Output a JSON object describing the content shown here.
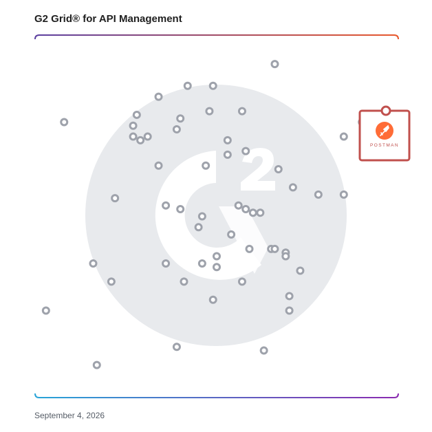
{
  "title": "G2 Grid® for API Management",
  "date": "September 4, 2026",
  "featured": {
    "name": "POSTMAN",
    "icon": "postman-rocket-icon",
    "brand_color": "#ff6c37",
    "frame_color": "#c0504d"
  },
  "colors": {
    "marker_stroke": "#9ea2ab",
    "watermark": "#e8eaed",
    "border_top_left": "#5b3fa0",
    "border_top_right": "#e8582c",
    "border_bottom_left": "#27a4d8",
    "border_bottom_right": "#8a2ab0"
  },
  "chart_data": {
    "type": "scatter",
    "title": "G2 Grid® for API Management",
    "xlabel": "",
    "ylabel": "",
    "xlim": [
      0,
      100
    ],
    "ylim": [
      0,
      100
    ],
    "quadrant_split": [
      50,
      50
    ],
    "grid": false,
    "featured_point": {
      "label": "POSTMAN",
      "x": 96,
      "y": 79
    },
    "points": [
      {
        "x": 66,
        "y": 92
      },
      {
        "x": 42,
        "y": 86
      },
      {
        "x": 49,
        "y": 86
      },
      {
        "x": 34,
        "y": 83
      },
      {
        "x": 57,
        "y": 79
      },
      {
        "x": 48,
        "y": 79
      },
      {
        "x": 28,
        "y": 78
      },
      {
        "x": 40,
        "y": 77
      },
      {
        "x": 8,
        "y": 76
      },
      {
        "x": 27,
        "y": 75
      },
      {
        "x": 39,
        "y": 74
      },
      {
        "x": 27,
        "y": 72
      },
      {
        "x": 29,
        "y": 71
      },
      {
        "x": 53,
        "y": 71
      },
      {
        "x": 58,
        "y": 68
      },
      {
        "x": 53,
        "y": 67
      },
      {
        "x": 34,
        "y": 64
      },
      {
        "x": 47,
        "y": 64
      },
      {
        "x": 67,
        "y": 63
      },
      {
        "x": 71,
        "y": 58
      },
      {
        "x": 85,
        "y": 56
      },
      {
        "x": 22,
        "y": 55
      },
      {
        "x": 36,
        "y": 53
      },
      {
        "x": 56,
        "y": 53
      },
      {
        "x": 40,
        "y": 52
      },
      {
        "x": 58,
        "y": 52
      },
      {
        "x": 60,
        "y": 51
      },
      {
        "x": 62,
        "y": 51
      },
      {
        "x": 46,
        "y": 50
      },
      {
        "x": 45,
        "y": 47
      },
      {
        "x": 54,
        "y": 45
      },
      {
        "x": 59,
        "y": 41
      },
      {
        "x": 65,
        "y": 41
      },
      {
        "x": 66,
        "y": 41
      },
      {
        "x": 69,
        "y": 40
      },
      {
        "x": 69,
        "y": 39
      },
      {
        "x": 50,
        "y": 39
      },
      {
        "x": 16,
        "y": 37
      },
      {
        "x": 36,
        "y": 37
      },
      {
        "x": 46,
        "y": 37
      },
      {
        "x": 50,
        "y": 36
      },
      {
        "x": 73,
        "y": 35
      },
      {
        "x": 21,
        "y": 32
      },
      {
        "x": 41,
        "y": 32
      },
      {
        "x": 57,
        "y": 32
      },
      {
        "x": 70,
        "y": 28
      },
      {
        "x": 49,
        "y": 27
      },
      {
        "x": 3,
        "y": 24
      },
      {
        "x": 70,
        "y": 24
      },
      {
        "x": 39,
        "y": 14
      },
      {
        "x": 63,
        "y": 13
      },
      {
        "x": 17,
        "y": 9
      },
      {
        "x": 90,
        "y": 76
      },
      {
        "x": 78,
        "y": 56
      },
      {
        "x": 31,
        "y": 72
      },
      {
        "x": 85,
        "y": 72
      }
    ]
  }
}
